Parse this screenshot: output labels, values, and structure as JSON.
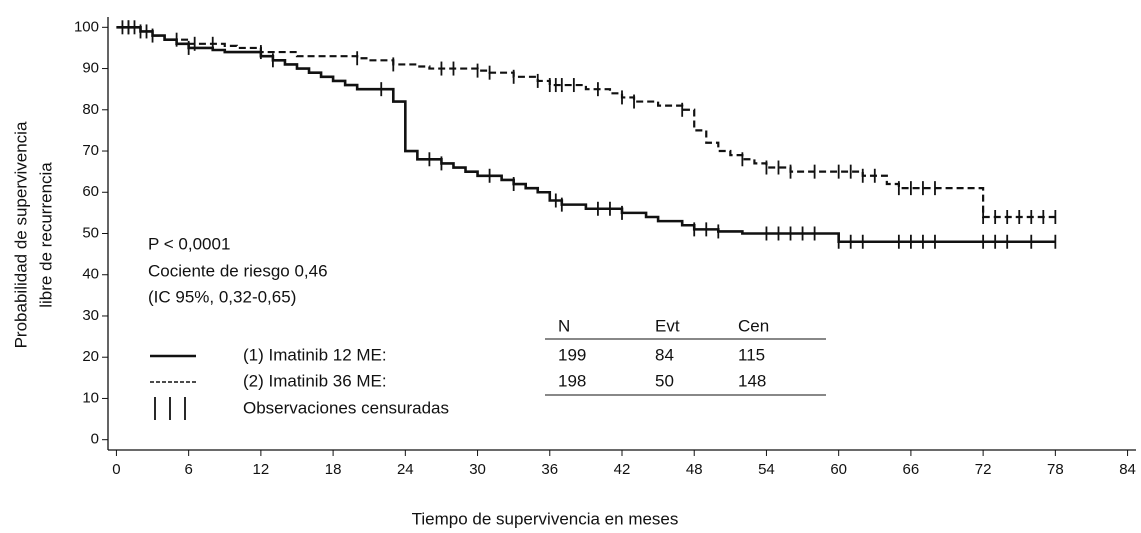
{
  "chart_data": {
    "type": "line",
    "step": true,
    "ylabel": [
      "Probabilidad de supervivencia",
      "libre de recurrencia"
    ],
    "xlabel": "Tiempo de supervivencia en meses",
    "xlim": [
      -0.7,
      84.7
    ],
    "ylim": [
      -2.5,
      102.5
    ],
    "xticks": [
      0,
      6,
      12,
      18,
      24,
      30,
      36,
      42,
      48,
      54,
      60,
      66,
      72,
      78,
      84
    ],
    "yticks": [
      0,
      10,
      20,
      30,
      40,
      50,
      60,
      70,
      80,
      90,
      100
    ],
    "x": [
      0,
      1,
      2,
      3,
      4,
      5,
      6,
      7,
      8,
      9,
      10,
      11,
      12,
      13,
      14,
      15,
      16,
      17,
      18,
      19,
      20,
      21,
      22,
      23,
      24,
      25,
      26,
      27,
      28,
      29,
      30,
      31,
      32,
      33,
      34,
      35,
      36,
      37,
      38,
      39,
      40,
      41,
      42,
      43,
      44,
      45,
      46,
      47,
      48,
      49,
      50,
      51,
      52,
      53,
      54,
      55,
      56,
      57,
      58,
      59,
      60,
      61,
      62,
      63,
      64,
      65,
      66,
      67,
      68,
      69,
      70,
      71,
      72,
      73,
      74,
      75,
      76,
      77,
      78
    ],
    "series": [
      {
        "name": "(1) Imatinib 12 ME:",
        "color": "#111111",
        "style": "solid",
        "values": [
          100,
          100,
          99,
          98,
          97,
          96,
          95,
          95,
          94.5,
          94,
          94,
          94,
          93,
          92,
          91,
          90,
          89,
          88,
          87,
          86,
          85,
          85,
          85,
          82,
          70,
          68,
          68,
          67,
          66,
          65,
          64,
          64,
          63,
          62,
          61,
          60,
          58,
          57,
          57,
          56,
          56,
          56,
          55,
          55,
          54,
          53,
          53,
          52,
          51,
          51,
          50.5,
          50.5,
          50,
          50,
          50,
          50,
          50,
          50,
          50,
          50,
          48,
          48,
          48,
          48,
          48,
          48,
          48,
          48,
          48,
          48,
          48,
          48,
          48,
          48,
          48,
          48,
          48,
          48,
          48
        ],
        "censored": [
          1,
          1.5,
          2.5,
          3,
          6,
          13,
          22,
          26,
          27,
          31,
          33,
          36.5,
          37,
          40,
          41,
          42,
          48,
          49,
          50,
          54,
          55,
          56,
          57,
          58,
          60,
          61,
          62,
          65,
          66,
          67,
          68,
          72,
          73,
          74,
          76,
          78
        ]
      },
      {
        "name": "(2) Imatinib 36 ME:",
        "color": "#111111",
        "style": "dashed",
        "values": [
          100,
          100,
          99,
          98,
          97,
          97,
          96,
          96,
          96,
          95.5,
          95,
          95,
          94,
          94,
          94,
          93,
          93,
          93,
          93,
          93,
          92.5,
          92,
          92,
          91,
          91,
          90.5,
          90,
          90,
          90,
          90,
          89.5,
          89,
          89,
          88,
          88,
          87,
          86,
          86,
          86,
          85,
          85,
          84,
          83,
          82,
          82,
          81,
          81,
          80,
          75,
          72,
          70,
          69,
          68,
          67,
          66,
          66,
          65,
          65,
          65,
          65,
          65,
          65,
          64,
          64,
          62,
          61,
          61,
          61,
          61,
          61,
          61,
          61,
          54,
          54,
          54,
          54,
          54,
          54,
          54
        ],
        "censored": [
          0.5,
          1,
          2,
          5,
          6.5,
          8,
          12,
          20,
          23,
          27,
          28,
          30,
          31,
          33,
          35,
          36,
          36.5,
          37,
          38,
          40,
          42,
          43,
          47,
          52,
          54,
          55,
          56,
          58,
          60,
          61,
          62,
          63,
          65,
          66,
          67,
          68,
          72,
          73,
          74,
          75,
          76,
          77,
          78
        ]
      }
    ],
    "censored_label": "Observaciones censuradas",
    "annotations": [
      "P < 0,0001",
      "Cociente de riesgo 0,46",
      "(IC 95%, 0,32-0,65)"
    ],
    "table": {
      "columns": [
        "N",
        "Evt",
        "Cen"
      ],
      "rows": [
        [
          199,
          84,
          115
        ],
        [
          198,
          50,
          148
        ]
      ]
    }
  }
}
